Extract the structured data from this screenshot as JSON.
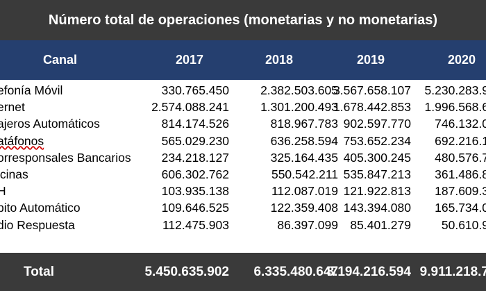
{
  "title": "Número total de operaciones (monetarias y no monetarias)",
  "columns": [
    "Canal",
    "2017",
    "2018",
    "2019",
    "2020"
  ],
  "rows": [
    {
      "canal": "efonía Móvil",
      "v2017": "330.765.450",
      "v2018": "2.382.503.605",
      "v2019": "3.567.658.107",
      "v2020": "5.230.283.9"
    },
    {
      "canal": "ernet",
      "v2017": "2.574.088.241",
      "v2018": "1.301.200.493",
      "v2019": "1.678.442.853",
      "v2020": "1.996.568.6"
    },
    {
      "canal": "ajeros Automáticos",
      "v2017": "814.174.526",
      "v2018": "818.967.783",
      "v2019": "902.597.770",
      "v2020": "746.132.0"
    },
    {
      "canal": "atáfonos",
      "v2017": "565.029.230",
      "v2018": "636.258.594",
      "v2019": "753.652.234",
      "v2020": "692.216.1"
    },
    {
      "canal": "orresponsales Bancarios",
      "v2017": "234.218.127",
      "v2018": "325.164.435",
      "v2019": "405.300.245",
      "v2020": "480.576.7"
    },
    {
      "canal": "icinas",
      "v2017": "606.302.762",
      "v2018": "550.542.211",
      "v2019": "535.847.213",
      "v2020": "361.486.8"
    },
    {
      "canal": "H",
      "v2017": "103.935.138",
      "v2018": "112.087.019",
      "v2019": "121.922.813",
      "v2020": "187.609.3"
    },
    {
      "canal": "bito Automático",
      "v2017": "109.646.525",
      "v2018": "122.359.408",
      "v2019": "143.394.080",
      "v2020": "165.734.0"
    },
    {
      "canal": "dio Respuesta",
      "v2017": "112.475.903",
      "v2018": "86.397.099",
      "v2019": "85.401.279",
      "v2020": "50.610.9"
    }
  ],
  "total": {
    "label": "Total",
    "v2017": "5.450.635.902",
    "v2018": "6.335.480.647",
    "v2019": "8.194.216.594",
    "v2020": "9.911.218.7"
  }
}
